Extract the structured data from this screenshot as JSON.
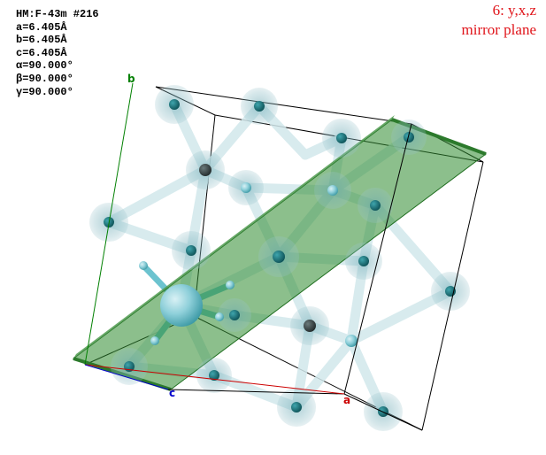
{
  "cell_info": {
    "space_group": "HM:F-43m #216",
    "a": "a=6.405Å",
    "b": "b=6.405Å",
    "c": "c=6.405Å",
    "alpha": "α=90.000°",
    "beta": "β=90.000°",
    "gamma": "γ=90.000°"
  },
  "symmetry_operation": {
    "number_and_op": "6: y,x,z",
    "element": "mirror plane"
  },
  "axes": {
    "a_label": "a",
    "b_label": "b",
    "c_label": "c",
    "a_color": "#cc0000",
    "b_color": "#008000",
    "c_color": "#0000cc"
  },
  "colors": {
    "plane_fill": "#2e8b2e",
    "atom_large": "#7ec8d3",
    "atom_dark": "#1f7a80",
    "bond": "#cfe6ea",
    "symop_text": "#e0141a"
  }
}
